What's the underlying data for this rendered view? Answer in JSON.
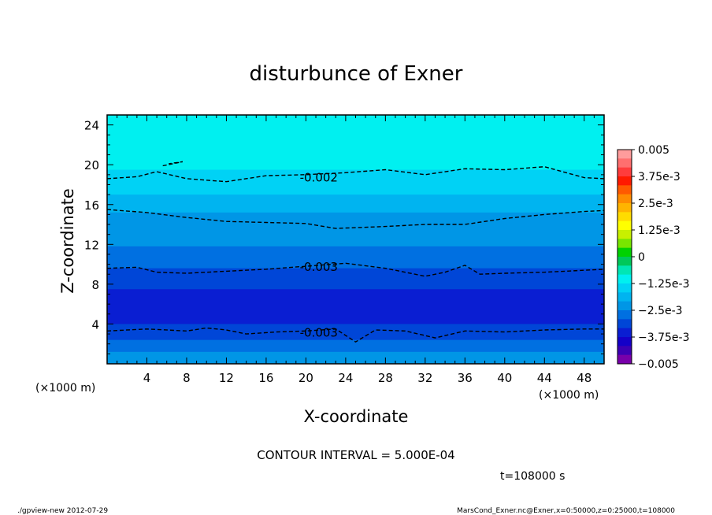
{
  "chart_data": {
    "type": "heatmap",
    "title": "disturbunce of Exner",
    "xlabel": "X-coordinate",
    "ylabel": "Z-coordinate",
    "x_unit": "(×1000 m)",
    "x_unit_right": "(×1000 m)",
    "xlim": [
      0,
      50
    ],
    "ylim": [
      0,
      25
    ],
    "x_ticks": [
      4,
      8,
      12,
      16,
      20,
      24,
      28,
      32,
      36,
      40,
      44,
      48
    ],
    "y_ticks": [
      4,
      8,
      12,
      16,
      20,
      24
    ],
    "colorbar": {
      "labels": [
        "0.005",
        "3.75e-3",
        "2.5e-3",
        "1.25e-3",
        "0",
        "−1.25e-3",
        "−2.5e-3",
        "−3.75e-3",
        "−0.005"
      ],
      "values": [
        0.005,
        0.00375,
        0.0025,
        0.00125,
        0,
        -0.00125,
        -0.0025,
        -0.00375,
        -0.005
      ],
      "colors": [
        "#ff9c9c",
        "#ff6f6f",
        "#ff3c3c",
        "#ff1a00",
        "#ff5a00",
        "#ff8c00",
        "#ffb400",
        "#ffdc00",
        "#ffff00",
        "#c8f000",
        "#78e600",
        "#00d200",
        "#00c85a",
        "#00e6b4",
        "#00f0f0",
        "#00d2f5",
        "#00b4f0",
        "#0096e6",
        "#0070e1",
        "#0046d7",
        "#0a1ed2",
        "#1400c8",
        "#3c00b4",
        "#7800aa"
      ]
    },
    "contour_interval": "CONTOUR INTERVAL = 5.000E-04",
    "time_label": "t=108000 s",
    "contour_labels": [
      {
        "text": "-0.002",
        "x": 21.3,
        "z": 18.8
      },
      {
        "text": "-0.003",
        "x": 21.3,
        "z": 9.8
      },
      {
        "text": "-0.003",
        "x": 21.3,
        "z": 3.2
      }
    ],
    "bands": [
      {
        "z": 25.0,
        "color": "#00f0f0"
      },
      {
        "z": 19.5,
        "color": "#00d2f5"
      },
      {
        "z": 17.0,
        "color": "#00b4f0"
      },
      {
        "z": 15.2,
        "color": "#0096e6"
      },
      {
        "z": 11.8,
        "color": "#0070e1"
      },
      {
        "z": 9.6,
        "color": "#0046d7"
      },
      {
        "z": 7.5,
        "color": "#0a1ed2"
      },
      {
        "z": 4.0,
        "color": "#0046d7"
      },
      {
        "z": 2.4,
        "color": "#0070e1"
      },
      {
        "z": 1.2,
        "color": "#0096e6"
      }
    ],
    "contours": [
      {
        "style": "dashed",
        "points": [
          [
            0,
            18.6
          ],
          [
            3,
            18.8
          ],
          [
            5,
            19.3
          ],
          [
            8,
            18.6
          ],
          [
            12,
            18.3
          ],
          [
            16,
            18.9
          ],
          [
            20,
            19.0
          ],
          [
            24,
            19.2
          ],
          [
            28,
            19.5
          ],
          [
            32,
            19.0
          ],
          [
            36,
            19.6
          ],
          [
            40,
            19.5
          ],
          [
            44,
            19.8
          ],
          [
            48,
            18.7
          ],
          [
            50,
            18.6
          ]
        ]
      },
      {
        "style": "dashed",
        "points": [
          [
            0,
            15.5
          ],
          [
            4,
            15.2
          ],
          [
            8,
            14.7
          ],
          [
            12,
            14.3
          ],
          [
            16,
            14.2
          ],
          [
            20,
            14.1
          ],
          [
            23,
            13.6
          ],
          [
            28,
            13.8
          ],
          [
            32,
            14.0
          ],
          [
            36,
            14.0
          ],
          [
            40,
            14.6
          ],
          [
            44,
            15.0
          ],
          [
            48,
            15.3
          ],
          [
            50,
            15.4
          ]
        ]
      },
      {
        "style": "dashed",
        "points": [
          [
            0,
            9.6
          ],
          [
            3,
            9.7
          ],
          [
            5,
            9.2
          ],
          [
            8,
            9.1
          ],
          [
            12,
            9.3
          ],
          [
            16,
            9.5
          ],
          [
            20,
            9.8
          ],
          [
            24,
            10.1
          ],
          [
            28,
            9.6
          ],
          [
            32,
            8.8
          ],
          [
            34,
            9.2
          ],
          [
            36,
            9.9
          ],
          [
            37.5,
            9.0
          ],
          [
            40,
            9.1
          ],
          [
            44,
            9.2
          ],
          [
            48,
            9.4
          ],
          [
            50,
            9.5
          ]
        ]
      },
      {
        "style": "dashed",
        "points": [
          [
            0,
            3.3
          ],
          [
            4,
            3.5
          ],
          [
            8,
            3.3
          ],
          [
            10,
            3.6
          ],
          [
            12,
            3.4
          ],
          [
            14,
            3.0
          ],
          [
            17,
            3.2
          ],
          [
            20,
            3.3
          ],
          [
            23,
            3.5
          ],
          [
            25,
            2.2
          ],
          [
            27,
            3.4
          ],
          [
            30,
            3.3
          ],
          [
            33,
            2.6
          ],
          [
            36,
            3.3
          ],
          [
            40,
            3.2
          ],
          [
            44,
            3.4
          ],
          [
            48,
            3.5
          ],
          [
            50,
            3.5
          ]
        ]
      },
      {
        "style": "dashed",
        "points": [
          [
            5.6,
            19.9
          ],
          [
            7.6,
            20.3
          ],
          [
            6.2,
            20.1
          ]
        ]
      }
    ]
  },
  "footer": {
    "left": "./gpview-new   2012-07-29",
    "right": "MarsCond_Exner.nc@Exner,x=0:50000,z=0:25000,t=108000"
  }
}
